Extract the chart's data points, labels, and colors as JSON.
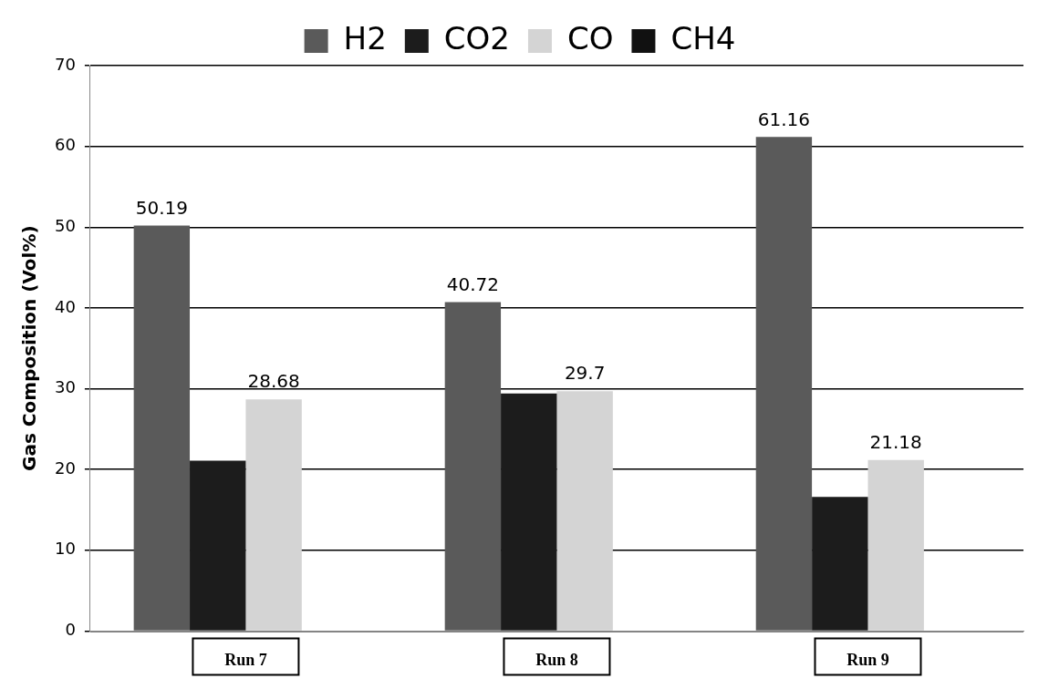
{
  "chart_data": {
    "type": "bar",
    "ylabel": "Gas Composition (Vol%)",
    "categories": [
      "Run 7",
      "Run 8",
      "Run 9"
    ],
    "series": [
      {
        "name": "H2",
        "color": "#5a5a5a",
        "values": [
          50.19,
          40.72,
          61.16
        ],
        "value_labels": [
          "50.19",
          "40.72",
          "61.16"
        ]
      },
      {
        "name": "CO2",
        "color": "#1c1c1c",
        "values": [
          21.1,
          29.4,
          16.6
        ]
      },
      {
        "name": "CO",
        "color": "#d4d4d4",
        "values": [
          28.68,
          29.7,
          21.18
        ],
        "value_labels": [
          "28.68",
          "29.7",
          "21.18"
        ]
      },
      {
        "name": "CH4",
        "color": "#111111",
        "values": [
          null,
          null,
          null
        ]
      }
    ],
    "ylim": [
      0,
      70
    ],
    "yticks": [
      0,
      10,
      20,
      30,
      40,
      50,
      60,
      70
    ],
    "grid": "y",
    "legend": "top"
  }
}
